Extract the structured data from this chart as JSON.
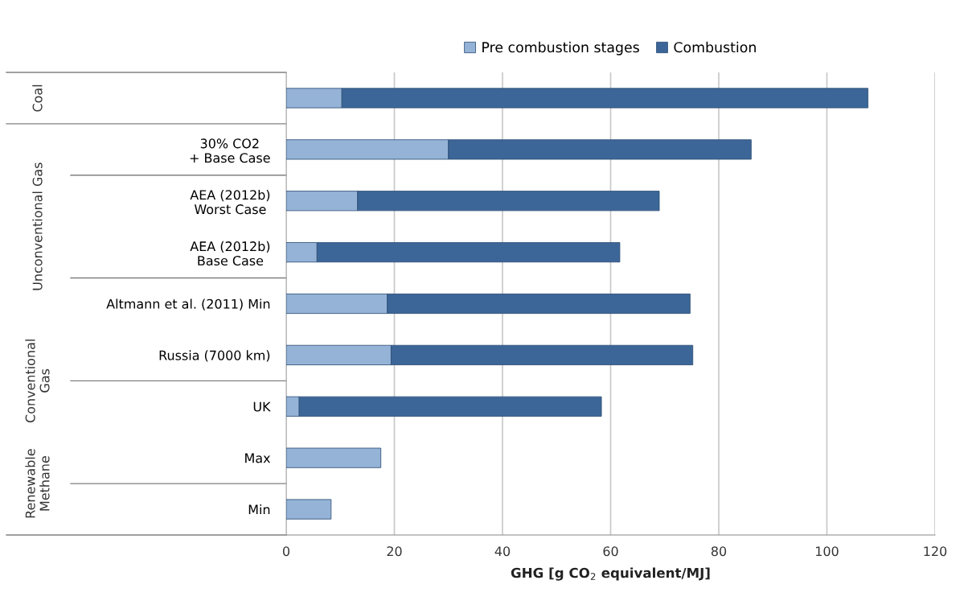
{
  "chart_data": {
    "type": "bar",
    "orientation": "horizontal",
    "stacked": true,
    "categories": [
      null,
      "30% CO2\n+ Base Case",
      "AEA (2012b)\nWorst Case",
      "AEA (2012b)\nBase Case",
      "Altmann et al. (2011) Min",
      "Russia (7000 km)",
      "UK",
      "Max",
      "Min"
    ],
    "series": [
      {
        "name": "Pre combustion stages",
        "color": "#95b3d7",
        "values": [
          10.3,
          30.0,
          13.2,
          5.7,
          18.7,
          19.4,
          2.4,
          17.5,
          8.3
        ]
      },
      {
        "name": "Combustion",
        "color": "#3c6698",
        "values": [
          97.3,
          56.0,
          55.8,
          56.0,
          56.0,
          55.8,
          55.9,
          null,
          null
        ]
      }
    ],
    "xlim": [
      0,
      120
    ],
    "xticks": [
      0,
      20,
      40,
      60,
      80,
      100,
      120
    ],
    "xlabel": "GHG [g CO$_{2}$ equivalent/MJ]",
    "annotations": [
      "Coal",
      "Unconventional Gas",
      "Conventional\nGas",
      "Renewable\nMethane"
    ],
    "grid": "x",
    "legend": "top"
  }
}
